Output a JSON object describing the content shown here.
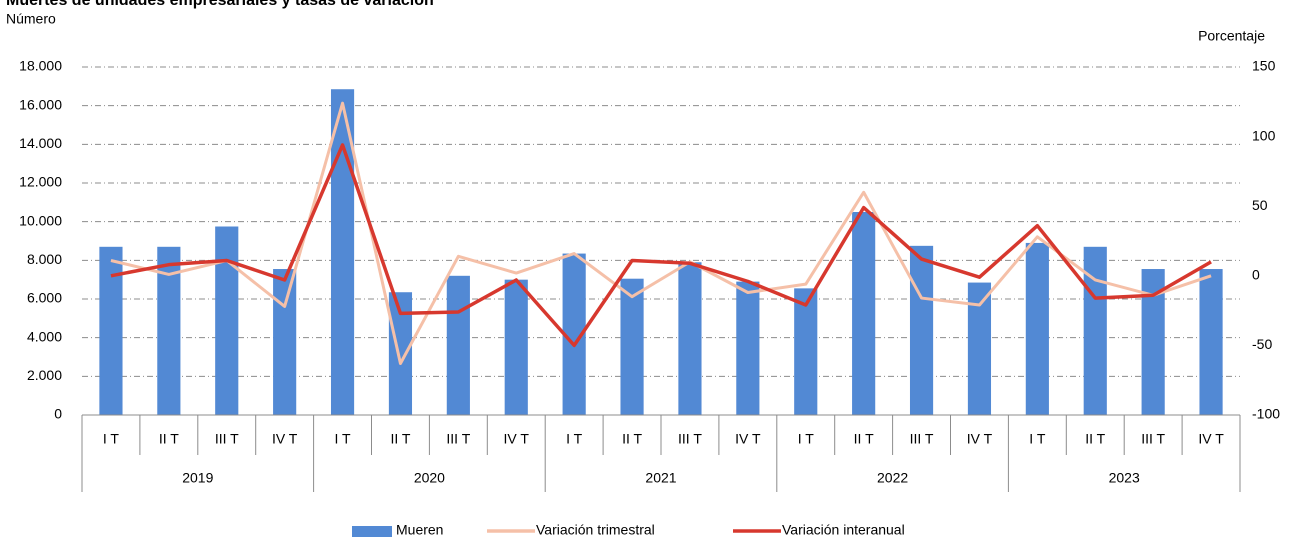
{
  "chart_data": {
    "type": "bar_line",
    "title": "Muertes de unidades empresariales y tasas de variación",
    "ylabel": "Número",
    "y2label": "Porcentaje",
    "categories": [
      "I T",
      "II T",
      "III T",
      "IV T",
      "I T",
      "II T",
      "III T",
      "IV T",
      "I T",
      "II T",
      "III T",
      "IV T",
      "I T",
      "II T",
      "III T",
      "IV T",
      "I T",
      "II T",
      "III T",
      "IV T"
    ],
    "years": [
      "2019",
      "2020",
      "2021",
      "2022",
      "2023"
    ],
    "series": [
      {
        "name": "Mueren",
        "type": "bar",
        "color": "#5289d4",
        "values": [
          8700,
          8700,
          9750,
          7550,
          16850,
          6350,
          7200,
          7000,
          8350,
          7050,
          7900,
          6900,
          6550,
          10500,
          8750,
          6850,
          8900,
          8700,
          7550,
          7550
        ]
      },
      {
        "name": "Variación trimestral",
        "type": "line",
        "axis": "y2",
        "color": "#f5c0a8",
        "values": [
          11,
          1,
          11,
          -22,
          124,
          -63,
          14,
          2,
          16,
          -15,
          10,
          -12,
          -6,
          60,
          -16,
          -21,
          28,
          -3,
          -14,
          0
        ]
      },
      {
        "name": "Variación interanual",
        "type": "line",
        "axis": "y2",
        "color": "#d7382e",
        "values": [
          0,
          8,
          11,
          -3,
          94,
          -27,
          -26,
          -3,
          -50,
          11,
          9,
          -4,
          -21,
          49,
          12,
          -1,
          36,
          -16,
          -14,
          10
        ]
      }
    ],
    "ylim": [
      0,
      18000
    ],
    "yticks": [
      0,
      {
        "value": 2000,
        "label": "2.000"
      },
      {
        "value": 4000,
        "label": "4.000"
      },
      {
        "value": 6000,
        "label": "6.000"
      },
      {
        "value": 8000,
        "label": "8.000"
      },
      {
        "value": 10000,
        "label": "10.000"
      },
      {
        "value": 12000,
        "label": "12.000"
      },
      {
        "value": 14000,
        "label": "14.000"
      },
      {
        "value": 16000,
        "label": "16.000"
      },
      {
        "value": 18000,
        "label": "18.000"
      }
    ],
    "y2lim": [
      -100,
      150
    ],
    "y2ticks": [
      -100,
      -50,
      0,
      50,
      100,
      150
    ],
    "grid": true,
    "legend": "bottom"
  }
}
